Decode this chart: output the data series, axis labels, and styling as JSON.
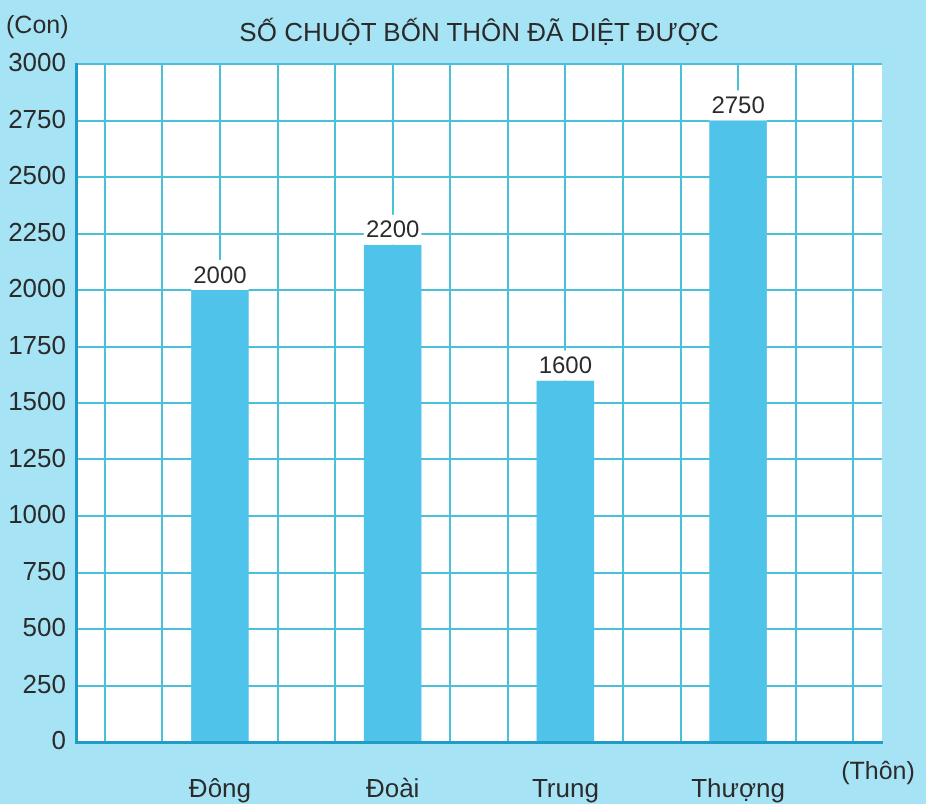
{
  "chart_data": {
    "type": "bar",
    "title": "SỐ CHUỘT BỐN THÔN ĐÃ DIỆT ĐƯỢC",
    "ylabel": "(Con)",
    "xlabel": "(Thôn)",
    "categories": [
      "Đông",
      "Đoài",
      "Trung",
      "Thượng"
    ],
    "values": [
      2000,
      2200,
      1600,
      2750
    ],
    "color": "#4fc3ea",
    "ylim": [
      0,
      3000
    ],
    "yticks": [
      0,
      250,
      500,
      750,
      1000,
      1250,
      1500,
      1750,
      2000,
      2250,
      2500,
      2750,
      3000
    ],
    "grid": true,
    "data_labels": true
  }
}
